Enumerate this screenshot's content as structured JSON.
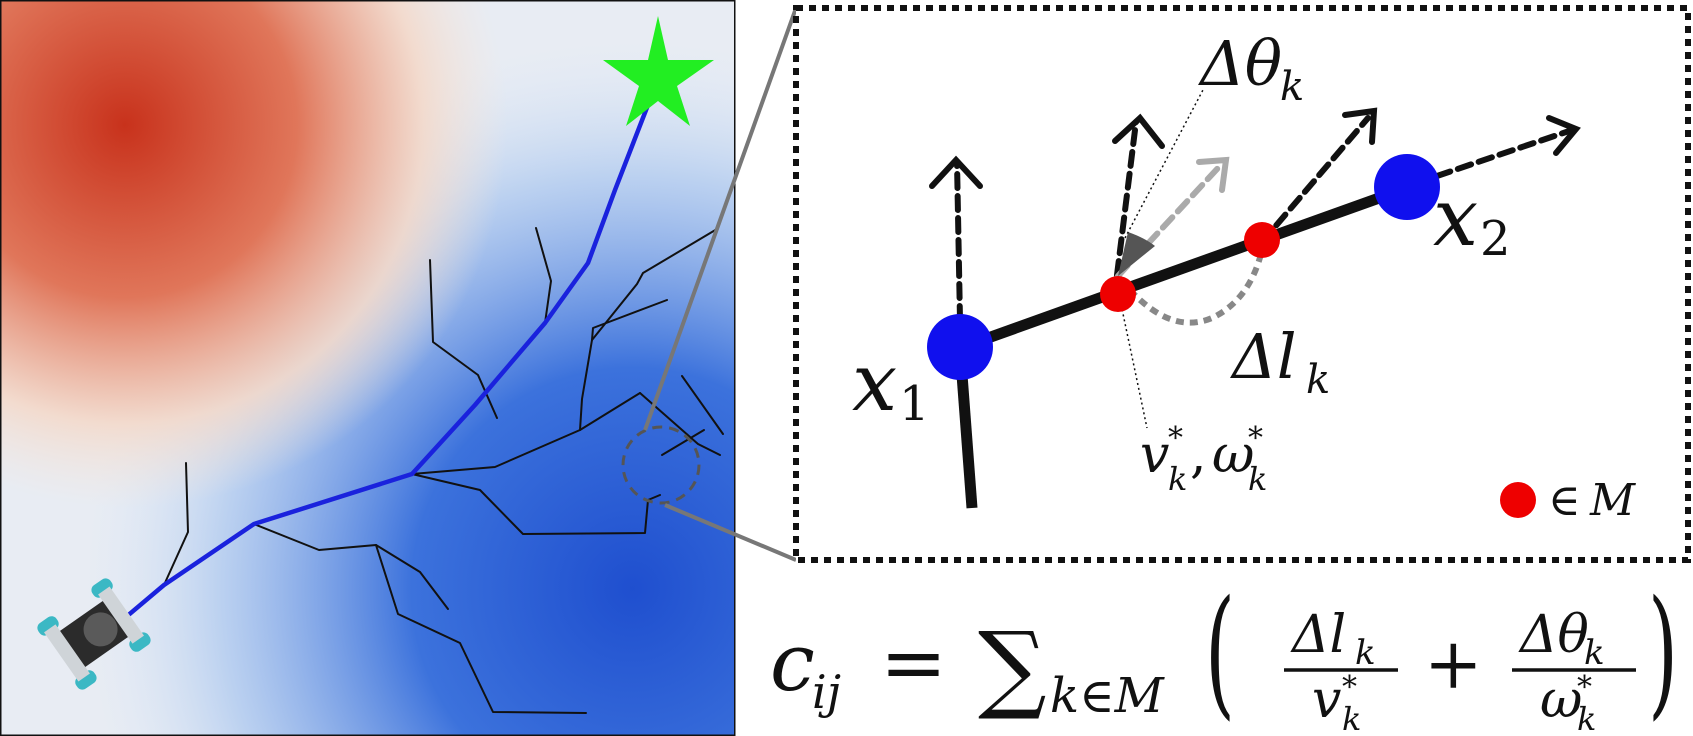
{
  "colors": {
    "hot": "#c8321c",
    "cold": "#1f4fcf",
    "path": "#1a22dd",
    "goal_star": "#22ee22",
    "node": "#1010ee",
    "marker": "#ee0000",
    "branch": "#111111",
    "ghost": "#aaaaaa"
  },
  "icons": {
    "goal": "star-icon",
    "robot": "robot-icon",
    "zoom_circle": "dashed-circle-icon"
  },
  "inset": {
    "node_a": {
      "base": "x",
      "sub": "1"
    },
    "node_b": {
      "base": "x",
      "sub": "2"
    },
    "delta_theta": {
      "base": "Δθ",
      "sub": "k"
    },
    "delta_l": {
      "base": "Δl",
      "sub": "k"
    },
    "velocity_label": {
      "v": "v",
      "v_sup": "*",
      "v_sub": "k",
      "sep": ",",
      "w": "ω",
      "w_sup": "*",
      "w_sub": "k"
    },
    "legend": {
      "symbol": "∈",
      "set": "M"
    }
  },
  "formula": {
    "lhs": "c",
    "lhs_sub": "ij",
    "eq": "=",
    "sum": "∑",
    "sum_sub": "k∈M",
    "lparen": "(",
    "rparen": ")",
    "plus": "+",
    "frac1": {
      "num": "Δl",
      "num_sub": "k",
      "den": "v",
      "den_sup": "*",
      "den_sub": "k"
    },
    "frac2": {
      "num": "Δθ",
      "num_sub": "k",
      "den": "ω",
      "den_sup": "*",
      "den_sub": "k"
    }
  }
}
